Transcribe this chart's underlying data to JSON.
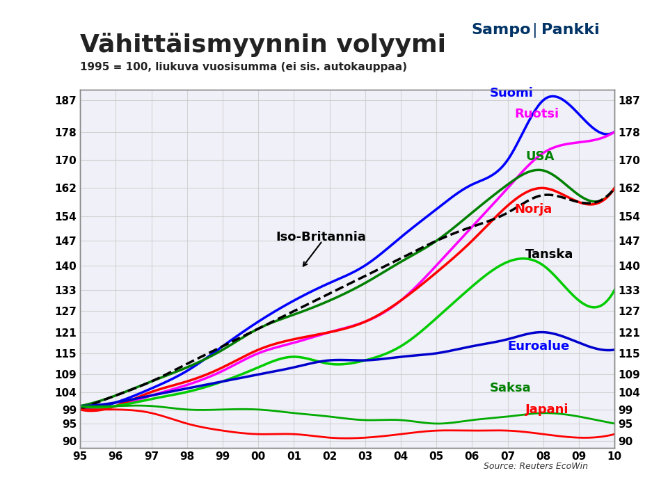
{
  "title": "Vähittäismyynnin volyymi",
  "subtitle": "1995 = 100, liukuva vuosisumma (ei sis. autokauppaa)",
  "source": "Source: Reuters EcoWin",
  "x_labels": [
    "95",
    "96",
    "97",
    "98",
    "99",
    "00",
    "01",
    "02",
    "03",
    "04",
    "05",
    "06",
    "07",
    "08",
    "09",
    "10"
  ],
  "x_values": [
    1995,
    1996,
    1997,
    1998,
    1999,
    2000,
    2001,
    2002,
    2003,
    2004,
    2005,
    2006,
    2007,
    2008,
    2009,
    2010
  ],
  "yticks": [
    90,
    95,
    99,
    104,
    109,
    115,
    121,
    127,
    133,
    140,
    147,
    154,
    162,
    170,
    178,
    187
  ],
  "ylim": [
    88,
    190
  ],
  "series": {
    "Suomi": {
      "color": "#0000FF",
      "linewidth": 2.5,
      "linestyle": "-",
      "label_color": "#0000FF",
      "data": [
        99,
        101,
        105,
        110,
        117,
        124,
        130,
        135,
        140,
        148,
        156,
        163,
        170,
        187,
        183,
        178
      ]
    },
    "Ruotsi": {
      "color": "#FF00FF",
      "linewidth": 2.5,
      "linestyle": "-",
      "label_color": "#FF00FF",
      "data": [
        99,
        100,
        103,
        106,
        110,
        115,
        118,
        121,
        124,
        130,
        140,
        151,
        162,
        172,
        175,
        178
      ]
    },
    "USA": {
      "color": "#008000",
      "linewidth": 2.5,
      "linestyle": "-",
      "label_color": "#008000",
      "data": [
        100,
        103,
        107,
        111,
        116,
        122,
        126,
        130,
        135,
        141,
        147,
        155,
        163,
        167,
        160,
        162
      ]
    },
    "Norja": {
      "color": "#FF0000",
      "linewidth": 2.5,
      "linestyle": "-",
      "label_color": "#FF0000",
      "data": [
        99,
        100,
        104,
        107,
        111,
        116,
        119,
        121,
        124,
        130,
        138,
        147,
        157,
        162,
        158,
        162
      ]
    },
    "Iso-Britannia": {
      "color": "#000000",
      "linewidth": 2.5,
      "linestyle": "--",
      "label_color": "#000000",
      "data": [
        99,
        103,
        107,
        112,
        117,
        122,
        127,
        132,
        137,
        142,
        147,
        151,
        155,
        160,
        158,
        162
      ]
    },
    "Tanska": {
      "color": "#00CC00",
      "linewidth": 2.5,
      "linestyle": "-",
      "label_color": "#000000",
      "data": [
        100,
        100,
        102,
        104,
        107,
        111,
        114,
        112,
        113,
        117,
        125,
        134,
        141,
        140,
        130,
        133
      ]
    },
    "Euroalue": {
      "color": "#0000CC",
      "linewidth": 2.5,
      "linestyle": "-",
      "label_color": "#0000FF",
      "data": [
        100,
        101,
        103,
        105,
        107,
        109,
        111,
        113,
        113,
        114,
        115,
        117,
        119,
        121,
        118,
        116
      ]
    },
    "Saksa": {
      "color": "#00AA00",
      "linewidth": 2.0,
      "linestyle": "-",
      "label_color": "#008000",
      "data": [
        100,
        100,
        100,
        99,
        99,
        99,
        98,
        97,
        96,
        96,
        95,
        96,
        97,
        98,
        97,
        95
      ]
    },
    "Japani": {
      "color": "#FF0000",
      "linewidth": 2.0,
      "linestyle": "-",
      "label_color": "#FF0000",
      "data": [
        99,
        99,
        98,
        95,
        93,
        92,
        92,
        91,
        91,
        92,
        93,
        93,
        93,
        92,
        91,
        92
      ]
    }
  },
  "background_color": "#FFFFFF",
  "plot_bg_color": "#F0F0F8",
  "grid_color": "#CCCCCC",
  "header_color": "#003366"
}
